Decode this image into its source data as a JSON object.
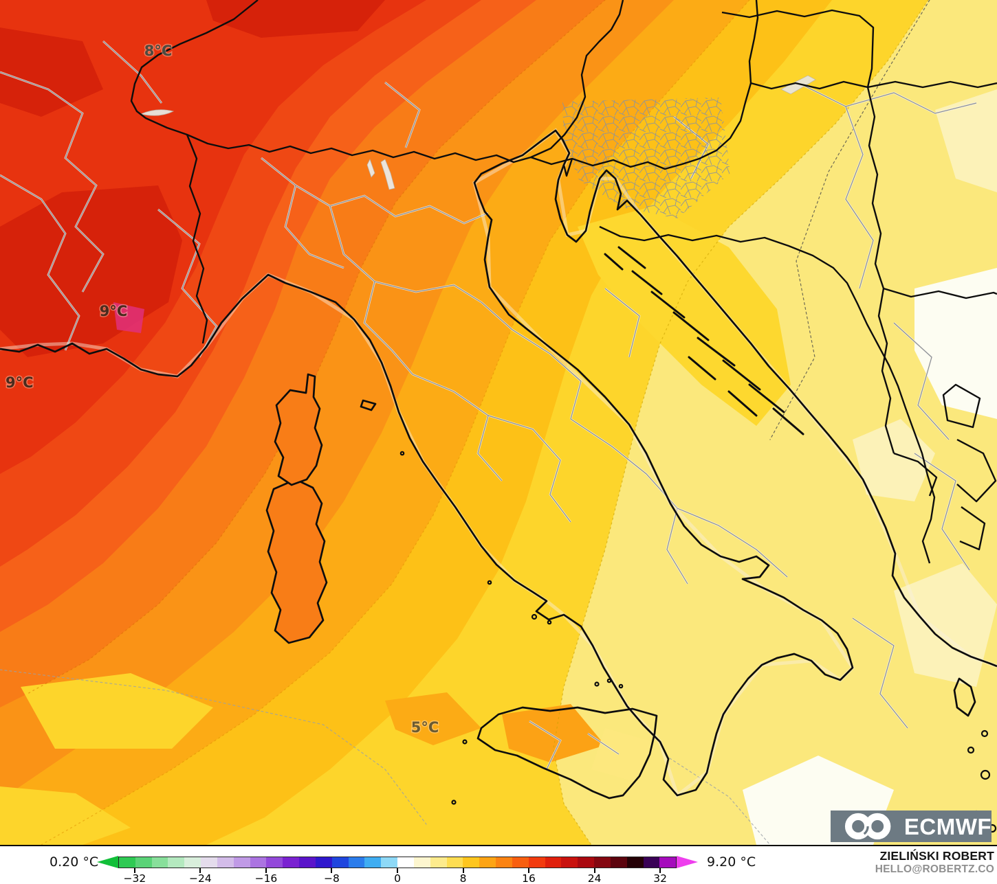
{
  "map": {
    "labels": [
      {
        "text": "8°C"
      },
      {
        "text": "9°C"
      },
      {
        "text": "9°C"
      },
      {
        "text": "5°C"
      }
    ],
    "band_colors": {
      "deep_red": "#d6220a",
      "dark_red": "#e7330f",
      "red": "#ef4814",
      "red_orange": "#f66119",
      "orange": "#f87c17",
      "mid_orange": "#fa9316",
      "amber": "#fcab15",
      "yellow_orange": "#fdc117",
      "yellow": "#fdd52b",
      "pale_yellow": "#fbe87c",
      "cream": "#fcf2b8",
      "near_white": "#fdfdf2"
    }
  },
  "legend": {
    "min_label": "0.20 °C",
    "max_label": "9.20 °C",
    "range": [
      -34,
      34
    ],
    "ticks": [
      -32,
      -24,
      -16,
      -8,
      0,
      8,
      16,
      24,
      32
    ],
    "arrow_left": "#12bf39",
    "arrow_right": "#ee3eed",
    "colors": [
      "#2fca54",
      "#5ad377",
      "#88df9b",
      "#b4e9bf",
      "#d9efdc",
      "#e4dcec",
      "#d3bce9",
      "#c09ae6",
      "#ab74e1",
      "#9349da",
      "#7a22d1",
      "#5a14ca",
      "#2f18cd",
      "#1f46de",
      "#2b7ceb",
      "#3fadf2",
      "#8ed9f7",
      "#ffffff",
      "#fdf6cf",
      "#fdeb8d",
      "#fedd52",
      "#fec61e",
      "#fda414",
      "#fb8312",
      "#f85f10",
      "#f23b0e",
      "#e0200c",
      "#c9120e",
      "#aa0910",
      "#840711",
      "#5c040e",
      "#250106",
      "#3a0256",
      "#a50bbc"
    ]
  },
  "branding": {
    "logo_text": "ECMWF"
  },
  "attribution": {
    "name": "ZIELIŃSKI ROBERT",
    "email": "HELLO@ROBERTZ.CO"
  }
}
